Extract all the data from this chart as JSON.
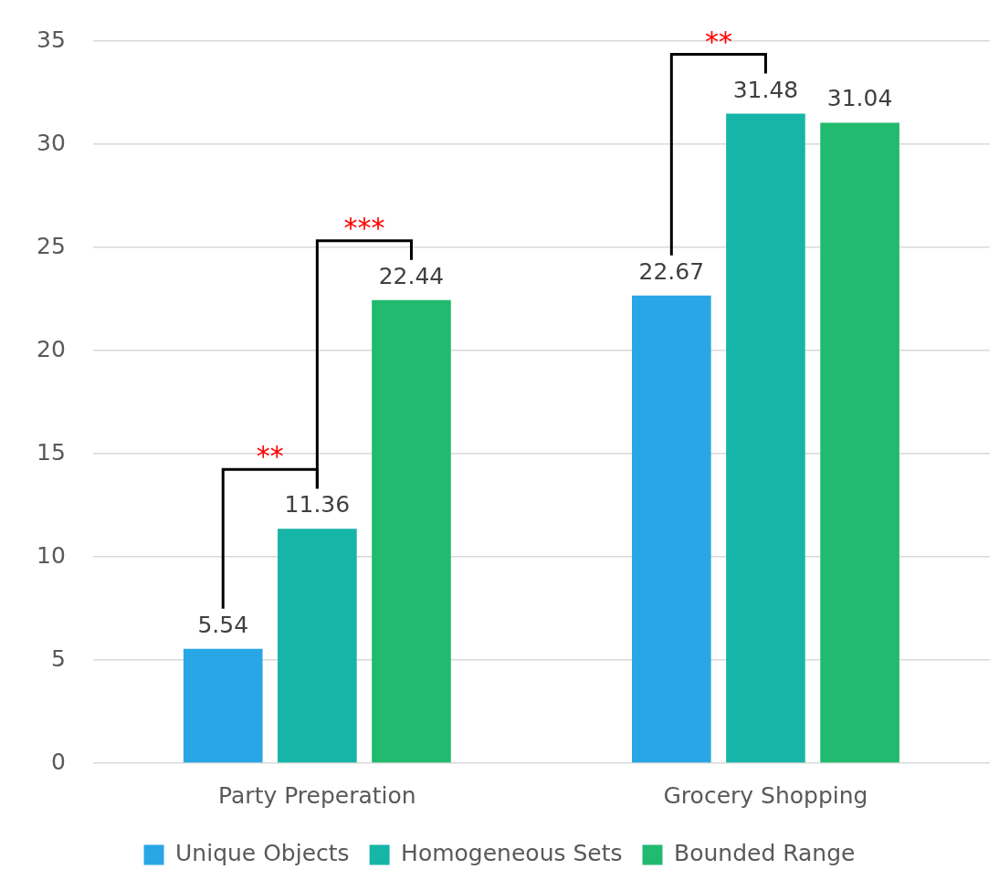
{
  "chart_data": {
    "type": "bar",
    "categories": [
      "Party Preperation",
      "Grocery Shopping"
    ],
    "series": [
      {
        "name": "Unique Objects",
        "color": "#29a6e5",
        "values": [
          5.54,
          22.67
        ]
      },
      {
        "name": "Homogeneous Sets",
        "color": "#16b5a7",
        "values": [
          11.36,
          31.48
        ]
      },
      {
        "name": "Bounded Range",
        "color": "#21ba6f",
        "values": [
          22.44,
          31.04
        ]
      }
    ],
    "ylim": [
      0,
      35
    ],
    "yticks": [
      0,
      5,
      10,
      15,
      20,
      25,
      30,
      35
    ],
    "grid": "y",
    "legend": "bottom",
    "data_labels": true,
    "annotations": [
      "**",
      "***",
      "**"
    ]
  }
}
